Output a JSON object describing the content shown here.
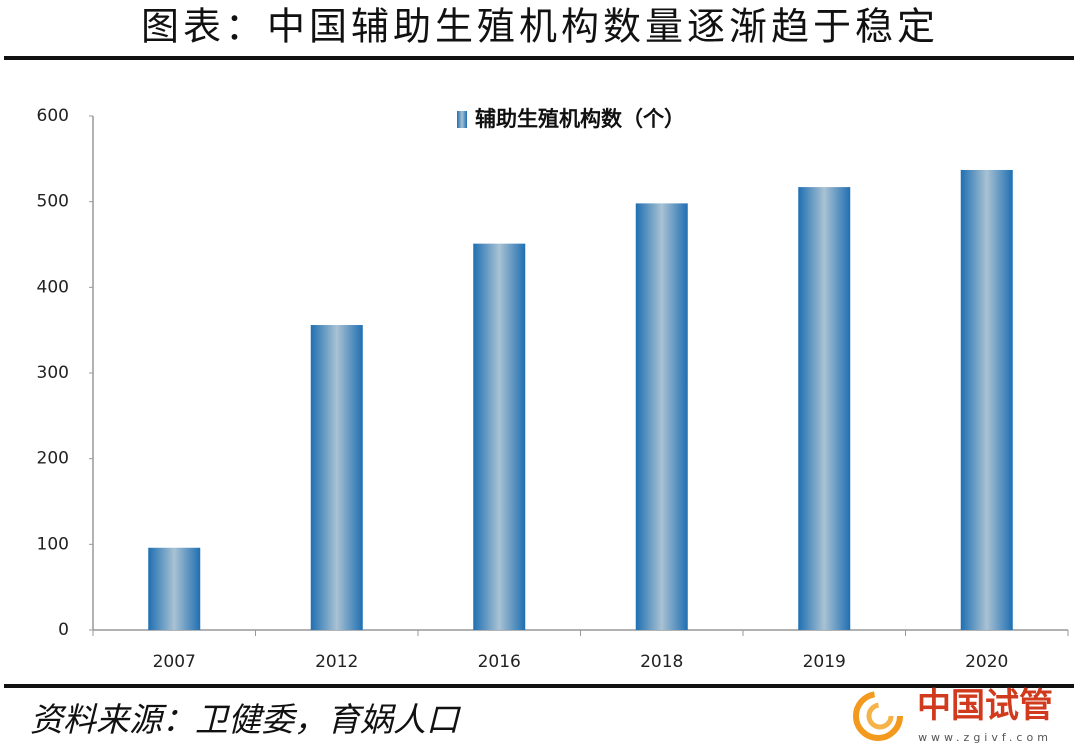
{
  "chart_data": {
    "type": "bar",
    "title": "图表：中国辅助生殖机构数量逐渐趋于稳定",
    "categories": [
      "2007",
      "2012",
      "2016",
      "2018",
      "2019",
      "2020"
    ],
    "series": [
      {
        "name": "辅助生殖机构数（个）",
        "color": "#1f6fb2",
        "values": [
          96,
          356,
          451,
          498,
          517,
          537
        ]
      }
    ],
    "ylim": [
      0,
      600
    ],
    "yticks": [
      0,
      100,
      200,
      300,
      400,
      500,
      600
    ],
    "source": "资料来源：卫健委，育娲人口",
    "watermark": {
      "name": "中国试管",
      "url": "www.zgivf.com"
    }
  }
}
